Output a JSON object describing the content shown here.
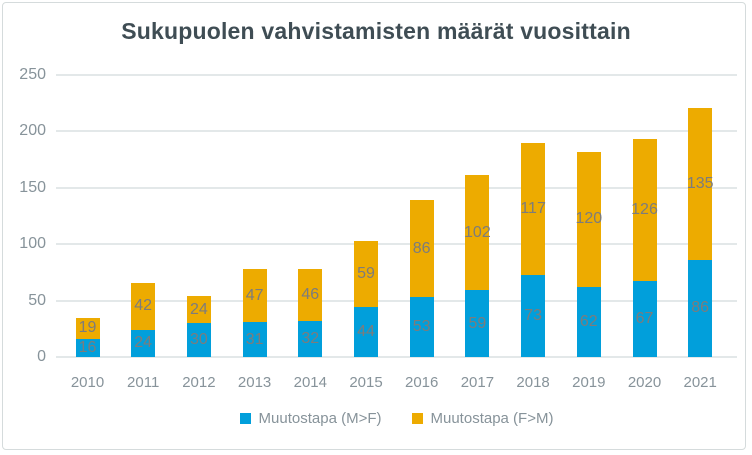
{
  "title": "Sukupuolen vahvistamisten määrät vuosittain",
  "colors": {
    "series_mf": "#019FDB",
    "series_fm": "#EDAB00",
    "title_text": "#3F4D54",
    "axis_text": "#87939A",
    "value_label": "#7C7C7C",
    "gridline": "#E3E8E9",
    "border": "#D5DBDC",
    "background": "#FFFFFF"
  },
  "chart_data": {
    "type": "bar",
    "stacked": true,
    "title": "Sukupuolen vahvistamisten määrät vuosittain",
    "categories": [
      "2010",
      "2011",
      "2012",
      "2013",
      "2014",
      "2015",
      "2016",
      "2017",
      "2018",
      "2019",
      "2020",
      "2021"
    ],
    "series": [
      {
        "name": "Muutostapa (M>F)",
        "color_key": "series_mf",
        "values": [
          16,
          24,
          30,
          31,
          32,
          44,
          53,
          59,
          73,
          62,
          67,
          86
        ]
      },
      {
        "name": "Muutostapa (F>M)",
        "color_key": "series_fm",
        "values": [
          19,
          42,
          24,
          47,
          46,
          59,
          86,
          102,
          117,
          120,
          126,
          135
        ]
      }
    ],
    "totals": [
      35,
      66,
      54,
      78,
      78,
      103,
      139,
      161,
      190,
      182,
      193,
      221
    ],
    "xlabel": "",
    "ylabel": "",
    "ylim": [
      0,
      250
    ],
    "yticks": [
      0,
      50,
      100,
      150,
      200,
      250
    ],
    "grid": true,
    "data_labels": true,
    "legend_position": "bottom"
  }
}
